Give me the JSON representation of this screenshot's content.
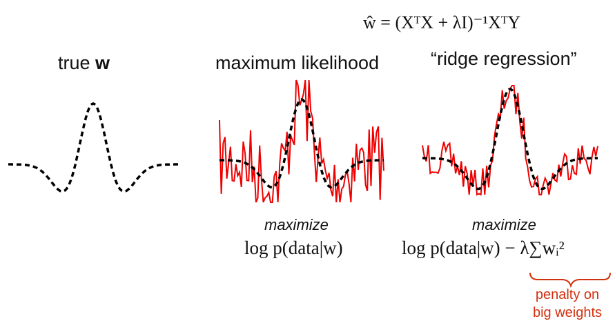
{
  "header": {
    "formula": "ŵ = (XᵀX + λI)⁻¹XᵀY"
  },
  "panels": [
    {
      "title_prefix": "true ",
      "title_bold": "w"
    },
    {
      "title": "maximum likelihood",
      "caption": "maximize",
      "objective": "log p(data|w)"
    },
    {
      "title": "“ridge regression”",
      "caption": "maximize",
      "objective": "log p(data|w) − λ∑wᵢ²"
    }
  ],
  "annotation": {
    "line1": "penalty on",
    "line2": "big weights"
  },
  "colors": {
    "true_weights": "#000000",
    "estimates": "#ee0000",
    "annotation": "#d2310f"
  }
}
